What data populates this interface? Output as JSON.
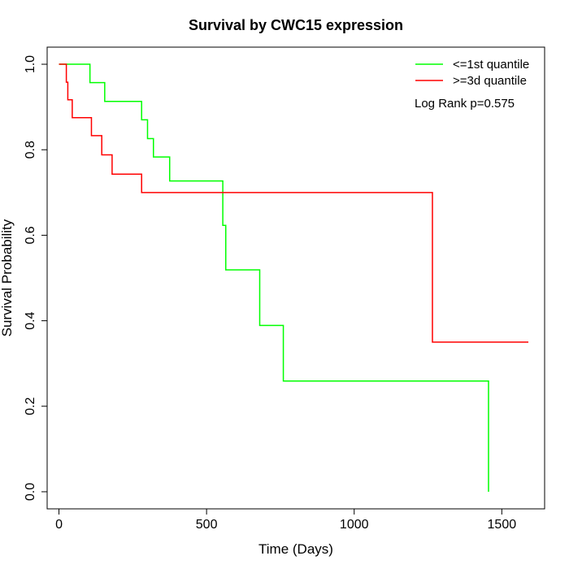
{
  "chart_data": {
    "type": "line",
    "title": "Survival by CWC15 expression",
    "xlabel": "Time (Days)",
    "ylabel": "Survival Probability",
    "xlim": [
      -40,
      1645
    ],
    "ylim": [
      -0.04,
      1.04
    ],
    "x_ticks": [
      0,
      500,
      1000,
      1500
    ],
    "x_tick_labels": [
      "0",
      "500",
      "1000",
      "1500"
    ],
    "y_ticks": [
      0.0,
      0.2,
      0.4,
      0.6,
      0.8,
      1.0
    ],
    "y_tick_labels": [
      "0.0",
      "0.2",
      "0.4",
      "0.6",
      "0.8",
      "1.0"
    ],
    "grid": false,
    "legend_position": "top-right",
    "annotation": "Log Rank p=0.575",
    "series": [
      {
        "name": "<=1st quantile",
        "color": "#00ff00",
        "step": true,
        "x": [
          0,
          105,
          155,
          280,
          300,
          320,
          375,
          555,
          565,
          680,
          760,
          1455,
          1455
        ],
        "y": [
          1.0,
          0.957,
          0.913,
          0.87,
          0.826,
          0.783,
          0.727,
          0.623,
          0.519,
          0.389,
          0.259,
          0.259,
          0.0
        ]
      },
      {
        "name": ">=3d quantile",
        "color": "#ff0000",
        "step": true,
        "x": [
          0,
          25,
          30,
          45,
          110,
          145,
          180,
          280,
          1265,
          1590
        ],
        "y": [
          1.0,
          0.958,
          0.917,
          0.875,
          0.833,
          0.788,
          0.743,
          0.7,
          0.35,
          0.35
        ]
      }
    ]
  }
}
